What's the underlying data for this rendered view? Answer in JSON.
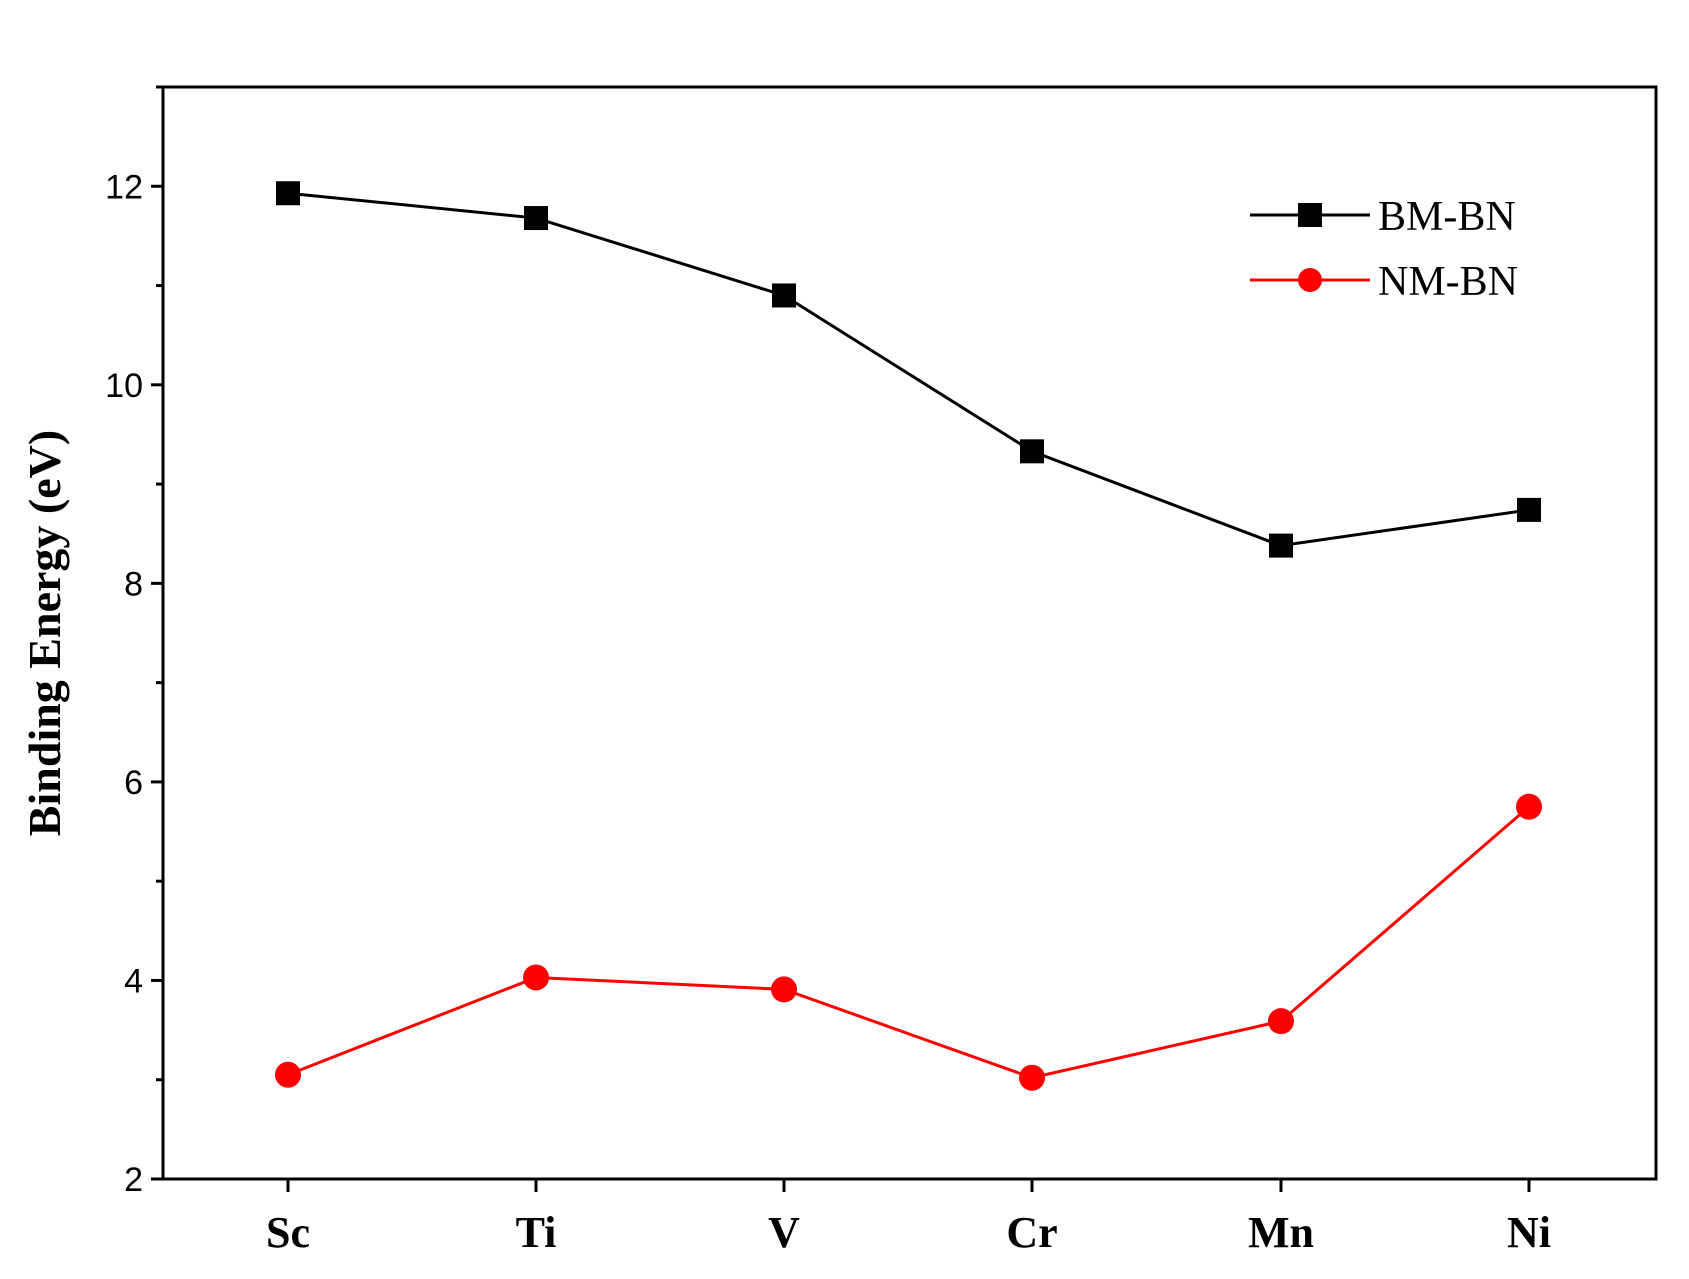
{
  "chart_data": {
    "type": "line",
    "title": "",
    "xlabel": "",
    "ylabel": "Binding Energy (eV)",
    "categories": [
      "Sc",
      "Ti",
      "V",
      "Cr",
      "Mn",
      "Ni"
    ],
    "ylim": [
      2,
      13
    ],
    "yticks": [
      2,
      4,
      6,
      8,
      10,
      12
    ],
    "yticks_labels": [
      "2",
      "4",
      "6",
      "8",
      "10",
      "12"
    ],
    "grid": false,
    "legend_position": "top-right",
    "series": [
      {
        "name": "BM-BN",
        "color": "#000000",
        "marker": "square",
        "values": [
          11.93,
          11.68,
          10.9,
          9.33,
          8.38,
          8.74
        ]
      },
      {
        "name": "NM-BN",
        "color": "#ff0000",
        "marker": "circle",
        "values": [
          3.05,
          4.03,
          3.91,
          3.02,
          3.59,
          5.75
        ]
      }
    ]
  }
}
